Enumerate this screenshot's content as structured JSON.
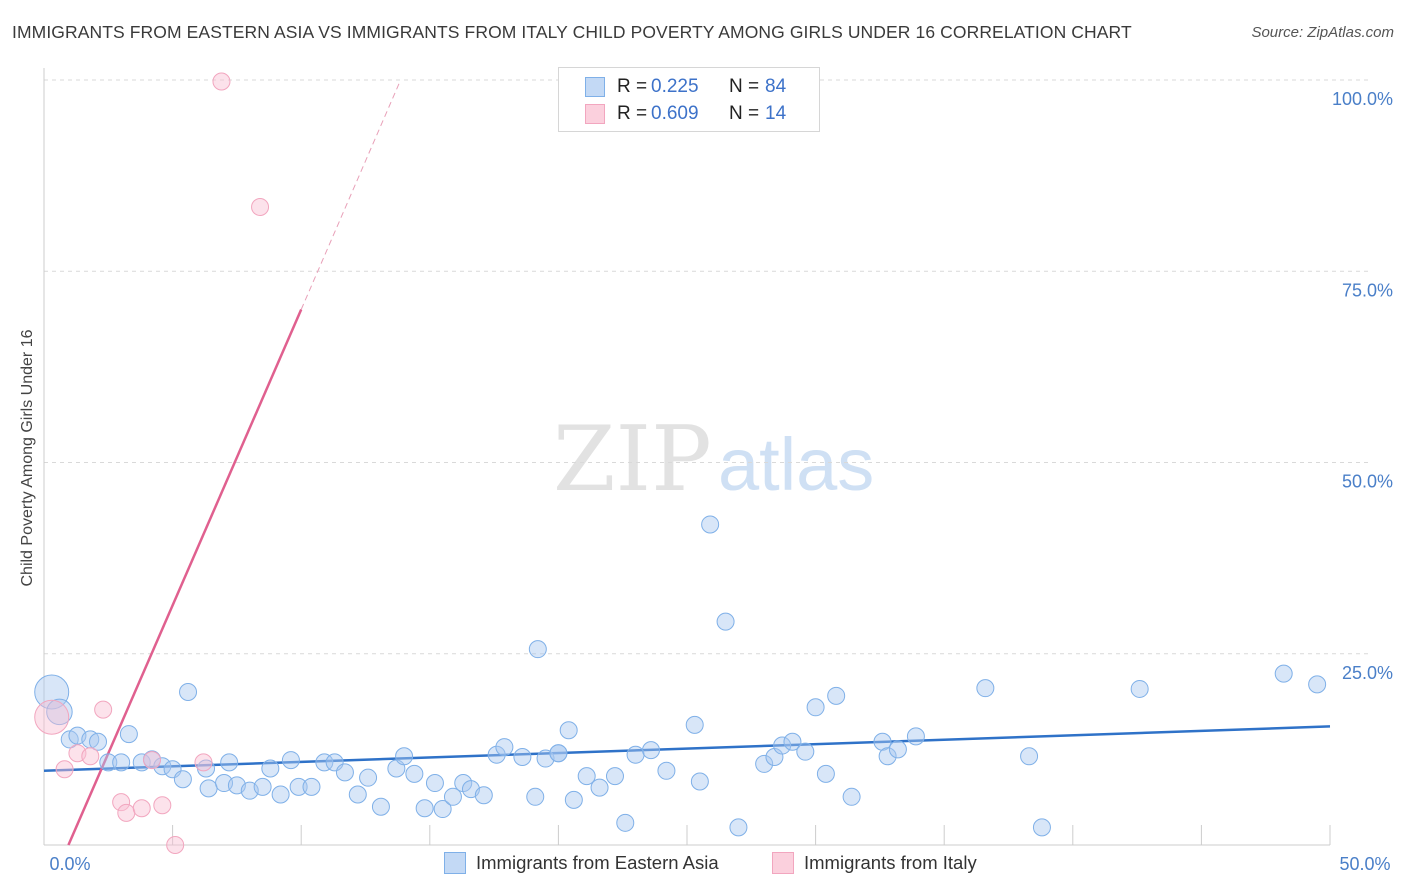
{
  "title": "IMMIGRANTS FROM EASTERN ASIA VS IMMIGRANTS FROM ITALY CHILD POVERTY AMONG GIRLS UNDER 16 CORRELATION CHART",
  "source": "Source: ZipAtlas.com",
  "watermark": {
    "part1": "ZIP",
    "part2": "atlas"
  },
  "legend": {
    "rows": [
      {
        "r_label": "R =",
        "r_value": "0.225",
        "n_label": "N =",
        "n_value": "84"
      },
      {
        "r_label": "R =",
        "r_value": "0.609",
        "n_label": "N =",
        "n_value": "14"
      }
    ]
  },
  "chart_data": {
    "type": "scatter",
    "title": "IMMIGRANTS FROM EASTERN ASIA VS IMMIGRANTS FROM ITALY CHILD POVERTY AMONG GIRLS UNDER 16 CORRELATION CHART",
    "xlabel": "",
    "ylabel": "Child Poverty Among Girls Under 16",
    "xlim": [
      0,
      50
    ],
    "ylim": [
      0,
      100
    ],
    "x_tick_labels": [
      "0.0%",
      "50.0%"
    ],
    "y_tick_labels": [
      "100.0%",
      "75.0%",
      "50.0%",
      "25.0%"
    ],
    "y_tick_values": [
      100,
      75,
      50,
      25
    ],
    "colors": {
      "blue": "#7fb0e8",
      "blue_line": "#2f72c8",
      "pink": "#f2a6bf",
      "pink_line": "#e0608f"
    },
    "series": [
      {
        "name": "Immigrants from Eastern Asia",
        "color": "blue",
        "trend": {
          "x0": 0,
          "y0": 9.7,
          "x1": 50,
          "y1": 15.5
        },
        "points": [
          {
            "x": 0.3,
            "y": 20.0,
            "s": 2
          },
          {
            "x": 0.6,
            "y": 17.4,
            "s": 1.5
          },
          {
            "x": 1.0,
            "y": 13.8
          },
          {
            "x": 1.3,
            "y": 14.3
          },
          {
            "x": 1.8,
            "y": 13.8
          },
          {
            "x": 2.1,
            "y": 13.5
          },
          {
            "x": 2.5,
            "y": 10.8
          },
          {
            "x": 3.0,
            "y": 10.8
          },
          {
            "x": 3.3,
            "y": 14.5
          },
          {
            "x": 3.8,
            "y": 10.8
          },
          {
            "x": 4.2,
            "y": 11.2
          },
          {
            "x": 4.6,
            "y": 10.3
          },
          {
            "x": 5.0,
            "y": 9.9
          },
          {
            "x": 5.4,
            "y": 8.6
          },
          {
            "x": 5.6,
            "y": 20.0
          },
          {
            "x": 6.3,
            "y": 10.0
          },
          {
            "x": 6.4,
            "y": 7.4
          },
          {
            "x": 7.0,
            "y": 8.1
          },
          {
            "x": 7.2,
            "y": 10.8
          },
          {
            "x": 7.5,
            "y": 7.8
          },
          {
            "x": 8.0,
            "y": 7.1
          },
          {
            "x": 8.5,
            "y": 7.6
          },
          {
            "x": 8.8,
            "y": 10.0
          },
          {
            "x": 9.2,
            "y": 6.6
          },
          {
            "x": 9.6,
            "y": 11.1
          },
          {
            "x": 9.9,
            "y": 7.6
          },
          {
            "x": 10.4,
            "y": 7.6
          },
          {
            "x": 10.9,
            "y": 10.8
          },
          {
            "x": 11.3,
            "y": 10.8
          },
          {
            "x": 11.7,
            "y": 9.5
          },
          {
            "x": 12.2,
            "y": 6.6
          },
          {
            "x": 12.6,
            "y": 8.8
          },
          {
            "x": 13.1,
            "y": 5.0
          },
          {
            "x": 13.7,
            "y": 10.0
          },
          {
            "x": 14.0,
            "y": 11.6
          },
          {
            "x": 14.4,
            "y": 9.3
          },
          {
            "x": 14.8,
            "y": 4.8
          },
          {
            "x": 15.2,
            "y": 8.1
          },
          {
            "x": 15.5,
            "y": 4.7
          },
          {
            "x": 15.9,
            "y": 6.3
          },
          {
            "x": 16.3,
            "y": 8.1
          },
          {
            "x": 16.6,
            "y": 7.3
          },
          {
            "x": 17.1,
            "y": 6.5
          },
          {
            "x": 17.6,
            "y": 11.8
          },
          {
            "x": 17.9,
            "y": 12.8
          },
          {
            "x": 18.6,
            "y": 11.5
          },
          {
            "x": 19.1,
            "y": 6.3
          },
          {
            "x": 19.2,
            "y": 25.6
          },
          {
            "x": 19.5,
            "y": 11.3
          },
          {
            "x": 20.0,
            "y": 12.0
          },
          {
            "x": 20.4,
            "y": 15.0
          },
          {
            "x": 20.6,
            "y": 5.9
          },
          {
            "x": 21.1,
            "y": 9.0
          },
          {
            "x": 21.6,
            "y": 7.5
          },
          {
            "x": 22.2,
            "y": 9.0
          },
          {
            "x": 22.6,
            "y": 2.9
          },
          {
            "x": 23.0,
            "y": 11.8
          },
          {
            "x": 23.6,
            "y": 12.4
          },
          {
            "x": 24.2,
            "y": 9.7
          },
          {
            "x": 25.3,
            "y": 15.7
          },
          {
            "x": 25.5,
            "y": 8.3
          },
          {
            "x": 25.9,
            "y": 41.9
          },
          {
            "x": 26.5,
            "y": 29.2
          },
          {
            "x": 27.0,
            "y": 2.3
          },
          {
            "x": 28.0,
            "y": 10.6
          },
          {
            "x": 28.4,
            "y": 11.5
          },
          {
            "x": 28.7,
            "y": 13.0
          },
          {
            "x": 29.1,
            "y": 13.5
          },
          {
            "x": 29.6,
            "y": 12.2
          },
          {
            "x": 30.0,
            "y": 18.0
          },
          {
            "x": 30.4,
            "y": 9.3
          },
          {
            "x": 30.8,
            "y": 19.5
          },
          {
            "x": 31.4,
            "y": 6.3
          },
          {
            "x": 32.6,
            "y": 13.5
          },
          {
            "x": 32.8,
            "y": 11.6
          },
          {
            "x": 33.2,
            "y": 12.5
          },
          {
            "x": 33.9,
            "y": 14.2
          },
          {
            "x": 36.6,
            "y": 20.5
          },
          {
            "x": 38.3,
            "y": 11.6
          },
          {
            "x": 38.8,
            "y": 2.3
          },
          {
            "x": 42.6,
            "y": 20.4
          },
          {
            "x": 48.2,
            "y": 22.4
          },
          {
            "x": 49.5,
            "y": 21.0
          },
          {
            "x": 20.0,
            "y": 12.0
          }
        ]
      },
      {
        "name": "Immigrants from Italy",
        "color": "pink",
        "trend": {
          "x0": 0.95,
          "y0": 0,
          "x1": 10.0,
          "y1": 70.0,
          "dash_x1": 13.8,
          "dash_y1": 99.5
        },
        "points": [
          {
            "x": 0.3,
            "y": 16.7,
            "s": 2
          },
          {
            "x": 0.8,
            "y": 9.9
          },
          {
            "x": 1.3,
            "y": 12.0
          },
          {
            "x": 1.8,
            "y": 11.6
          },
          {
            "x": 2.3,
            "y": 17.7
          },
          {
            "x": 3.0,
            "y": 5.6
          },
          {
            "x": 3.2,
            "y": 4.2
          },
          {
            "x": 3.8,
            "y": 4.8
          },
          {
            "x": 4.2,
            "y": 11.1
          },
          {
            "x": 4.6,
            "y": 5.2
          },
          {
            "x": 5.1,
            "y": 0
          },
          {
            "x": 6.2,
            "y": 10.8
          },
          {
            "x": 6.9,
            "y": 99.8
          },
          {
            "x": 8.4,
            "y": 83.4
          }
        ]
      }
    ]
  },
  "bottom_legend": [
    {
      "label": "Immigrants from Eastern Asia"
    },
    {
      "label": "Immigrants from Italy"
    }
  ]
}
